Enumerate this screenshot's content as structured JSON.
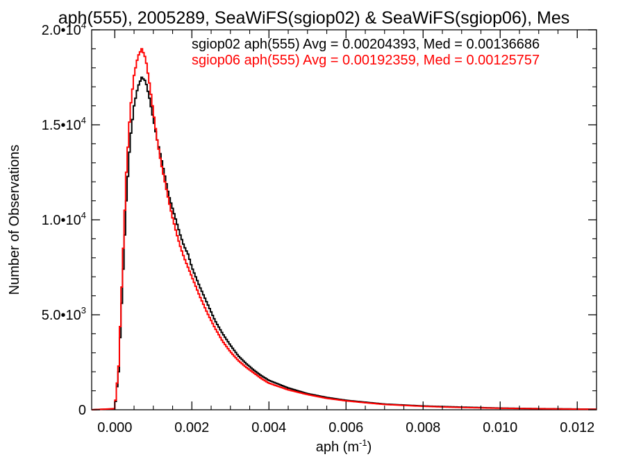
{
  "chart_data": {
    "type": "line",
    "title": "aph(555), 2005289, SeaWiFS(sgiop02) & SeaWiFS(sgiop06), Mes",
    "xlabel": "aph",
    "xlabel_unit_base": "m",
    "xlabel_unit_exp": "-1",
    "ylabel": "Number of Observations",
    "xlim": [
      -0.0006,
      0.0125
    ],
    "ylim": [
      0,
      20000
    ],
    "x_ticks": [
      {
        "value": 0.0,
        "label": "0.000"
      },
      {
        "value": 0.002,
        "label": "0.002"
      },
      {
        "value": 0.004,
        "label": "0.004"
      },
      {
        "value": 0.006,
        "label": "0.006"
      },
      {
        "value": 0.008,
        "label": "0.008"
      },
      {
        "value": 0.01,
        "label": "0.010"
      },
      {
        "value": 0.012,
        "label": "0.012"
      }
    ],
    "y_ticks": [
      {
        "value": 0,
        "mantissa": "0",
        "exp": ""
      },
      {
        "value": 5000,
        "mantissa": "5.0•10",
        "exp": "3"
      },
      {
        "value": 10000,
        "mantissa": "1.0•10",
        "exp": "4"
      },
      {
        "value": 15000,
        "mantissa": "1.5•10",
        "exp": "4"
      },
      {
        "value": 20000,
        "mantissa": "2.0•10",
        "exp": "4"
      }
    ],
    "grid": false,
    "legend_position": "top-right",
    "series": [
      {
        "name": "sgiop02 aph(555) Avg = 0.00204393, Med = 0.00136686",
        "color": "#000000",
        "x": [
          -0.0006,
          0.0,
          0.0001,
          0.0002,
          0.0003,
          0.0004,
          0.0005,
          0.0006,
          0.0007,
          0.0008,
          0.0009,
          0.001,
          0.0011,
          0.0012,
          0.0013,
          0.0014,
          0.0015,
          0.0016,
          0.0017,
          0.0018,
          0.0019,
          0.002,
          0.0022,
          0.0024,
          0.0026,
          0.0028,
          0.003,
          0.0032,
          0.0034,
          0.0036,
          0.0038,
          0.004,
          0.0045,
          0.005,
          0.0055,
          0.006,
          0.0065,
          0.007,
          0.008,
          0.009,
          0.01,
          0.011,
          0.012,
          0.0125
        ],
        "y": [
          0,
          50,
          2000,
          6500,
          11000,
          14200,
          16000,
          17000,
          17500,
          17300,
          16400,
          15300,
          14200,
          13300,
          12300,
          11300,
          10600,
          9900,
          9200,
          8600,
          8200,
          7500,
          6500,
          5600,
          4700,
          4000,
          3400,
          2850,
          2450,
          2100,
          1800,
          1550,
          1150,
          850,
          650,
          500,
          400,
          300,
          200,
          140,
          90,
          60,
          40,
          30
        ]
      },
      {
        "name": "sgiop06 aph(555) Avg = 0.00192359, Med = 0.00125757",
        "color": "#ff0000",
        "x": [
          -0.0006,
          0.0,
          0.0001,
          0.0002,
          0.0003,
          0.0004,
          0.0005,
          0.0006,
          0.0007,
          0.0008,
          0.0009,
          0.001,
          0.0011,
          0.0012,
          0.0013,
          0.0014,
          0.0015,
          0.0016,
          0.0017,
          0.0018,
          0.0019,
          0.002,
          0.0022,
          0.0024,
          0.0026,
          0.0028,
          0.003,
          0.0032,
          0.0034,
          0.0036,
          0.0038,
          0.004,
          0.0045,
          0.005,
          0.0055,
          0.006,
          0.0065,
          0.007,
          0.008,
          0.009,
          0.01,
          0.011,
          0.012,
          0.0125
        ],
        "y": [
          0,
          60,
          2300,
          7500,
          12500,
          15800,
          17600,
          18600,
          19000,
          18500,
          17200,
          15700,
          14200,
          13000,
          12000,
          11000,
          10100,
          9300,
          8600,
          8000,
          7500,
          7000,
          6000,
          5100,
          4300,
          3600,
          3050,
          2600,
          2250,
          1950,
          1650,
          1400,
          1050,
          800,
          600,
          470,
          370,
          280,
          180,
          120,
          80,
          55,
          35,
          25
        ]
      }
    ]
  }
}
